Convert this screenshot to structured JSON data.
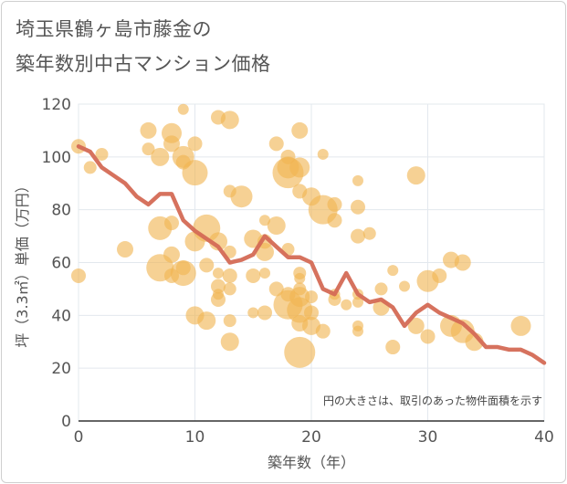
{
  "title_line1": "埼玉県鶴ヶ島市藤金の",
  "title_line2": "築年数別中古マンション価格",
  "chart_data": {
    "type": "scatter",
    "xlabel": "築年数（年）",
    "ylabel": "坪（3.3㎡）単価（万円）",
    "xlim": [
      0,
      40
    ],
    "ylim": [
      0,
      120
    ],
    "xticks": [
      0,
      10,
      20,
      30,
      40
    ],
    "yticks": [
      0,
      20,
      40,
      60,
      80,
      100,
      120
    ],
    "grid": true,
    "annotation": "円の大きさは、取引のあった物件面積を示す",
    "bubble_color": "#f0b552",
    "line_color": "#d46a55",
    "bubbles": [
      {
        "x": 0,
        "y": 104,
        "s": 8
      },
      {
        "x": 0,
        "y": 55,
        "s": 8
      },
      {
        "x": 1,
        "y": 96,
        "s": 7
      },
      {
        "x": 2,
        "y": 101,
        "s": 7
      },
      {
        "x": 4,
        "y": 65,
        "s": 9
      },
      {
        "x": 6,
        "y": 110,
        "s": 9
      },
      {
        "x": 6,
        "y": 103,
        "s": 7
      },
      {
        "x": 7,
        "y": 100,
        "s": 10
      },
      {
        "x": 8,
        "y": 109,
        "s": 11
      },
      {
        "x": 8,
        "y": 105,
        "s": 9
      },
      {
        "x": 9,
        "y": 118,
        "s": 6
      },
      {
        "x": 9,
        "y": 100,
        "s": 12
      },
      {
        "x": 9,
        "y": 98,
        "s": 8
      },
      {
        "x": 10,
        "y": 105,
        "s": 8
      },
      {
        "x": 10,
        "y": 94,
        "s": 14
      },
      {
        "x": 7,
        "y": 73,
        "s": 13
      },
      {
        "x": 8,
        "y": 75,
        "s": 8
      },
      {
        "x": 8,
        "y": 63,
        "s": 9
      },
      {
        "x": 7,
        "y": 58,
        "s": 15
      },
      {
        "x": 8,
        "y": 55,
        "s": 8
      },
      {
        "x": 9,
        "y": 56,
        "s": 14
      },
      {
        "x": 9,
        "y": 58,
        "s": 8
      },
      {
        "x": 11,
        "y": 73,
        "s": 15
      },
      {
        "x": 10,
        "y": 68,
        "s": 11
      },
      {
        "x": 12,
        "y": 68,
        "s": 10
      },
      {
        "x": 11,
        "y": 59,
        "s": 8
      },
      {
        "x": 12,
        "y": 56,
        "s": 6
      },
      {
        "x": 12,
        "y": 115,
        "s": 8
      },
      {
        "x": 13,
        "y": 114,
        "s": 10
      },
      {
        "x": 13,
        "y": 87,
        "s": 7
      },
      {
        "x": 14,
        "y": 85,
        "s": 12
      },
      {
        "x": 13,
        "y": 64,
        "s": 7
      },
      {
        "x": 13,
        "y": 55,
        "s": 8
      },
      {
        "x": 12,
        "y": 51,
        "s": 8
      },
      {
        "x": 12,
        "y": 48,
        "s": 6
      },
      {
        "x": 12,
        "y": 46,
        "s": 8
      },
      {
        "x": 13,
        "y": 50,
        "s": 7
      },
      {
        "x": 10,
        "y": 40,
        "s": 10
      },
      {
        "x": 11,
        "y": 38,
        "s": 10
      },
      {
        "x": 13,
        "y": 38,
        "s": 7
      },
      {
        "x": 13,
        "y": 30,
        "s": 10
      },
      {
        "x": 15,
        "y": 69,
        "s": 10
      },
      {
        "x": 16,
        "y": 76,
        "s": 6
      },
      {
        "x": 17,
        "y": 74,
        "s": 10
      },
      {
        "x": 16,
        "y": 68,
        "s": 8
      },
      {
        "x": 16,
        "y": 64,
        "s": 10
      },
      {
        "x": 16,
        "y": 56,
        "s": 6
      },
      {
        "x": 15,
        "y": 55,
        "s": 8
      },
      {
        "x": 17,
        "y": 50,
        "s": 8
      },
      {
        "x": 15,
        "y": 41,
        "s": 6
      },
      {
        "x": 16,
        "y": 41,
        "s": 8
      },
      {
        "x": 17,
        "y": 105,
        "s": 8
      },
      {
        "x": 18,
        "y": 100,
        "s": 8
      },
      {
        "x": 18,
        "y": 96,
        "s": 12
      },
      {
        "x": 18,
        "y": 94,
        "s": 17
      },
      {
        "x": 19,
        "y": 110,
        "s": 9
      },
      {
        "x": 19,
        "y": 96,
        "s": 11
      },
      {
        "x": 19,
        "y": 87,
        "s": 8
      },
      {
        "x": 20,
        "y": 85,
        "s": 10
      },
      {
        "x": 21,
        "y": 101,
        "s": 6
      },
      {
        "x": 21,
        "y": 80,
        "s": 16
      },
      {
        "x": 22,
        "y": 82,
        "s": 8
      },
      {
        "x": 22,
        "y": 76,
        "s": 8
      },
      {
        "x": 18,
        "y": 65,
        "s": 7
      },
      {
        "x": 19,
        "y": 56,
        "s": 7
      },
      {
        "x": 19,
        "y": 54,
        "s": 6
      },
      {
        "x": 18,
        "y": 48,
        "s": 8
      },
      {
        "x": 19,
        "y": 50,
        "s": 7
      },
      {
        "x": 19,
        "y": 47,
        "s": 11
      },
      {
        "x": 18,
        "y": 44,
        "s": 16
      },
      {
        "x": 19,
        "y": 42,
        "s": 14
      },
      {
        "x": 19,
        "y": 37,
        "s": 9
      },
      {
        "x": 20,
        "y": 36,
        "s": 10
      },
      {
        "x": 20,
        "y": 41,
        "s": 8
      },
      {
        "x": 20,
        "y": 47,
        "s": 7
      },
      {
        "x": 21,
        "y": 34,
        "s": 8
      },
      {
        "x": 19,
        "y": 26,
        "s": 17
      },
      {
        "x": 24,
        "y": 91,
        "s": 6
      },
      {
        "x": 24,
        "y": 81,
        "s": 8
      },
      {
        "x": 25,
        "y": 71,
        "s": 7
      },
      {
        "x": 24,
        "y": 70,
        "s": 8
      },
      {
        "x": 22,
        "y": 48,
        "s": 6
      },
      {
        "x": 22,
        "y": 46,
        "s": 7
      },
      {
        "x": 23,
        "y": 44,
        "s": 6
      },
      {
        "x": 24,
        "y": 48,
        "s": 6
      },
      {
        "x": 24,
        "y": 45,
        "s": 6
      },
      {
        "x": 24,
        "y": 36,
        "s": 6
      },
      {
        "x": 24,
        "y": 34,
        "s": 6
      },
      {
        "x": 26,
        "y": 50,
        "s": 7
      },
      {
        "x": 26,
        "y": 43,
        "s": 9
      },
      {
        "x": 27,
        "y": 57,
        "s": 6
      },
      {
        "x": 27,
        "y": 28,
        "s": 8
      },
      {
        "x": 28,
        "y": 51,
        "s": 6
      },
      {
        "x": 29,
        "y": 93,
        "s": 10
      },
      {
        "x": 29,
        "y": 36,
        "s": 9
      },
      {
        "x": 30,
        "y": 53,
        "s": 12
      },
      {
        "x": 30,
        "y": 32,
        "s": 8
      },
      {
        "x": 31,
        "y": 55,
        "s": 8
      },
      {
        "x": 32,
        "y": 61,
        "s": 9
      },
      {
        "x": 32,
        "y": 36,
        "s": 12
      },
      {
        "x": 33,
        "y": 60,
        "s": 9
      },
      {
        "x": 33,
        "y": 34,
        "s": 13
      },
      {
        "x": 34,
        "y": 30,
        "s": 10
      },
      {
        "x": 38,
        "y": 36,
        "s": 11
      }
    ],
    "line": {
      "x": [
        0,
        1,
        2,
        3,
        4,
        5,
        6,
        7,
        8,
        9,
        10,
        11,
        12,
        13,
        14,
        15,
        16,
        17,
        18,
        19,
        20,
        21,
        22,
        23,
        24,
        25,
        26,
        27,
        28,
        29,
        30,
        31,
        32,
        33,
        34,
        35,
        36,
        37,
        38,
        39,
        40
      ],
      "y": [
        104,
        102,
        96,
        93,
        90,
        85,
        82,
        86,
        86,
        76,
        72,
        69,
        66,
        60,
        61,
        63,
        70,
        66,
        62,
        62,
        60,
        50,
        48,
        56,
        48,
        45,
        46,
        43,
        36,
        41,
        44,
        41,
        39,
        37,
        33,
        28,
        28,
        27,
        27,
        25,
        22
      ]
    }
  }
}
